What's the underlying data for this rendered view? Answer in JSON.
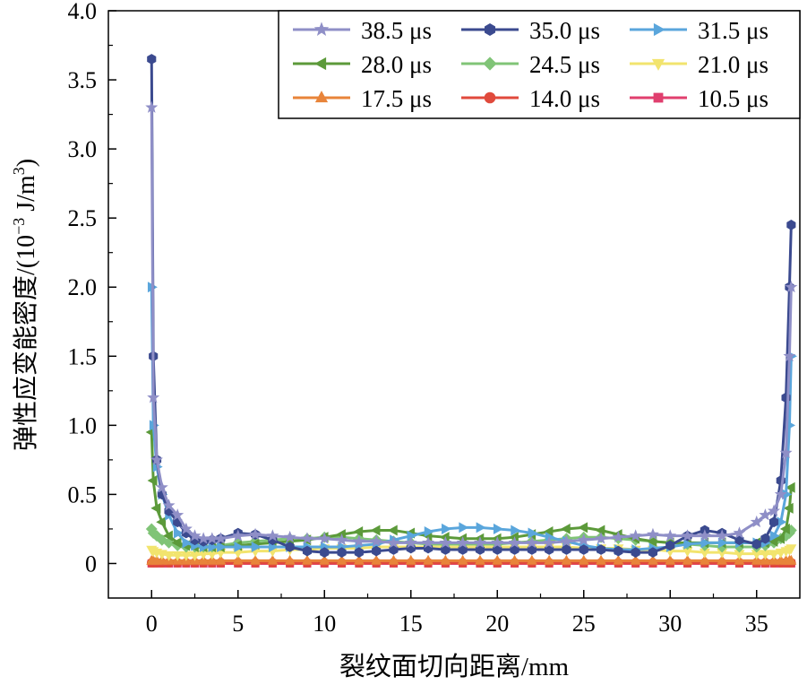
{
  "chart_data": {
    "type": "line",
    "title": "",
    "xlabel": "裂纹面切向距离/mm",
    "ylabel_main": "弹性应变能密度/(10",
    "ylabel_exp": "−3",
    "ylabel_unit": " J/m",
    "ylabel_unit_exp": "3",
    "ylabel_close": ")",
    "xlim": [
      -2.5,
      37.5
    ],
    "ylim": [
      -0.25,
      4.0
    ],
    "xticks": [
      0,
      5,
      10,
      15,
      20,
      25,
      30,
      35
    ],
    "xtick_labels": [
      "0",
      "5",
      "10",
      "15",
      "20",
      "25",
      "30",
      "35"
    ],
    "yticks": [
      0,
      0.5,
      1.0,
      1.5,
      2.0,
      2.5,
      3.0,
      3.5,
      4.0
    ],
    "ytick_labels": [
      "0",
      "0.5",
      "1.0",
      "1.5",
      "2.0",
      "2.5",
      "3.0",
      "3.5",
      "4.0"
    ],
    "legend_position": "top-right",
    "x": [
      0.0,
      0.1,
      0.3,
      0.6,
      1.0,
      1.5,
      2.0,
      2.5,
      3.0,
      3.5,
      4.0,
      5.0,
      6.0,
      7.0,
      8.0,
      9.0,
      10.0,
      11.0,
      12.0,
      13.0,
      14.0,
      15.0,
      16.0,
      17.0,
      18.0,
      19.0,
      20.0,
      21.0,
      22.0,
      23.0,
      24.0,
      25.0,
      26.0,
      27.0,
      28.0,
      29.0,
      30.0,
      31.0,
      32.0,
      33.0,
      34.0,
      35.0,
      35.5,
      36.0,
      36.4,
      36.7,
      36.9,
      37.0
    ],
    "series": [
      {
        "name": "38.5 μs",
        "color": "#8f8fc7",
        "marker": "star",
        "values": [
          3.3,
          1.2,
          0.75,
          0.55,
          0.42,
          0.35,
          0.25,
          0.2,
          0.18,
          0.18,
          0.18,
          0.2,
          0.21,
          0.2,
          0.19,
          0.18,
          0.18,
          0.17,
          0.16,
          0.16,
          0.15,
          0.15,
          0.15,
          0.15,
          0.15,
          0.15,
          0.15,
          0.15,
          0.15,
          0.15,
          0.16,
          0.17,
          0.18,
          0.19,
          0.2,
          0.21,
          0.2,
          0.2,
          0.2,
          0.2,
          0.22,
          0.3,
          0.35,
          0.38,
          0.5,
          0.8,
          1.5,
          2.0
        ]
      },
      {
        "name": "35.0 μs",
        "color": "#3b4a8f",
        "marker": "hexagon",
        "values": [
          3.65,
          1.5,
          0.75,
          0.5,
          0.38,
          0.3,
          0.22,
          0.17,
          0.16,
          0.17,
          0.18,
          0.22,
          0.21,
          0.17,
          0.12,
          0.09,
          0.08,
          0.08,
          0.08,
          0.09,
          0.1,
          0.11,
          0.11,
          0.1,
          0.1,
          0.1,
          0.1,
          0.1,
          0.1,
          0.1,
          0.1,
          0.1,
          0.1,
          0.09,
          0.08,
          0.08,
          0.13,
          0.2,
          0.24,
          0.22,
          0.17,
          0.14,
          0.18,
          0.3,
          0.6,
          1.2,
          2.0,
          2.45
        ]
      },
      {
        "name": "31.5 μs",
        "color": "#5aa6dc",
        "marker": "triangle-right",
        "values": [
          2.0,
          1.0,
          0.7,
          0.5,
          0.35,
          0.22,
          0.15,
          0.13,
          0.12,
          0.12,
          0.12,
          0.12,
          0.12,
          0.12,
          0.12,
          0.12,
          0.12,
          0.12,
          0.13,
          0.14,
          0.17,
          0.2,
          0.23,
          0.25,
          0.26,
          0.26,
          0.25,
          0.24,
          0.22,
          0.19,
          0.16,
          0.13,
          0.11,
          0.1,
          0.1,
          0.11,
          0.12,
          0.14,
          0.15,
          0.15,
          0.15,
          0.15,
          0.15,
          0.2,
          0.3,
          0.5,
          1.0,
          1.5
        ]
      },
      {
        "name": "28.0 μs",
        "color": "#5c9a3a",
        "marker": "triangle-left",
        "values": [
          0.95,
          0.6,
          0.4,
          0.3,
          0.2,
          0.15,
          0.13,
          0.12,
          0.12,
          0.12,
          0.12,
          0.13,
          0.14,
          0.15,
          0.16,
          0.17,
          0.19,
          0.21,
          0.23,
          0.24,
          0.24,
          0.22,
          0.2,
          0.19,
          0.18,
          0.18,
          0.18,
          0.19,
          0.21,
          0.23,
          0.25,
          0.26,
          0.24,
          0.21,
          0.18,
          0.16,
          0.15,
          0.15,
          0.15,
          0.15,
          0.15,
          0.15,
          0.15,
          0.16,
          0.18,
          0.25,
          0.4,
          0.55
        ]
      },
      {
        "name": "24.5 μs",
        "color": "#80c477",
        "marker": "diamond",
        "values": [
          0.25,
          0.22,
          0.2,
          0.17,
          0.15,
          0.13,
          0.12,
          0.12,
          0.12,
          0.12,
          0.13,
          0.15,
          0.16,
          0.17,
          0.18,
          0.18,
          0.19,
          0.19,
          0.18,
          0.17,
          0.16,
          0.15,
          0.14,
          0.14,
          0.14,
          0.14,
          0.14,
          0.15,
          0.16,
          0.17,
          0.18,
          0.19,
          0.19,
          0.18,
          0.17,
          0.16,
          0.15,
          0.14,
          0.13,
          0.12,
          0.12,
          0.12,
          0.13,
          0.15,
          0.18,
          0.2,
          0.22,
          0.24
        ]
      },
      {
        "name": "21.0 μs",
        "color": "#f2e46e",
        "marker": "triangle-down",
        "values": [
          0.1,
          0.09,
          0.08,
          0.07,
          0.06,
          0.06,
          0.06,
          0.06,
          0.07,
          0.07,
          0.08,
          0.08,
          0.09,
          0.09,
          0.1,
          0.1,
          0.11,
          0.11,
          0.11,
          0.12,
          0.12,
          0.12,
          0.12,
          0.12,
          0.12,
          0.12,
          0.12,
          0.12,
          0.12,
          0.12,
          0.12,
          0.11,
          0.11,
          0.11,
          0.1,
          0.1,
          0.09,
          0.09,
          0.08,
          0.08,
          0.07,
          0.07,
          0.07,
          0.07,
          0.08,
          0.09,
          0.1,
          0.11
        ]
      },
      {
        "name": "17.5 μs",
        "color": "#e8843a",
        "marker": "triangle-up",
        "values": [
          0.02,
          0.02,
          0.02,
          0.02,
          0.02,
          0.02,
          0.02,
          0.02,
          0.02,
          0.02,
          0.02,
          0.02,
          0.02,
          0.02,
          0.02,
          0.02,
          0.02,
          0.02,
          0.02,
          0.02,
          0.02,
          0.02,
          0.02,
          0.02,
          0.02,
          0.02,
          0.02,
          0.02,
          0.02,
          0.02,
          0.02,
          0.02,
          0.02,
          0.02,
          0.02,
          0.02,
          0.02,
          0.02,
          0.02,
          0.02,
          0.02,
          0.02,
          0.02,
          0.02,
          0.02,
          0.02,
          0.02,
          0.02
        ]
      },
      {
        "name": "14.0 μs",
        "color": "#e04a3c",
        "marker": "circle",
        "values": [
          0.005,
          0.005,
          0.005,
          0.005,
          0.005,
          0.005,
          0.005,
          0.005,
          0.005,
          0.005,
          0.005,
          0.005,
          0.005,
          0.005,
          0.005,
          0.005,
          0.005,
          0.005,
          0.005,
          0.005,
          0.005,
          0.005,
          0.005,
          0.005,
          0.005,
          0.005,
          0.005,
          0.005,
          0.005,
          0.005,
          0.005,
          0.005,
          0.005,
          0.005,
          0.005,
          0.005,
          0.005,
          0.005,
          0.005,
          0.005,
          0.005,
          0.005,
          0.005,
          0.005,
          0.005,
          0.005,
          0.005,
          0.005
        ]
      },
      {
        "name": "10.5 μs",
        "color": "#e03f6e",
        "marker": "square",
        "values": [
          0.0,
          0.0,
          0.0,
          0.0,
          0.0,
          0.0,
          0.0,
          0.0,
          0.0,
          0.0,
          0.0,
          0.0,
          0.0,
          0.0,
          0.0,
          0.0,
          0.0,
          0.0,
          0.0,
          0.0,
          0.0,
          0.0,
          0.0,
          0.0,
          0.0,
          0.0,
          0.0,
          0.0,
          0.0,
          0.0,
          0.0,
          0.0,
          0.0,
          0.0,
          0.0,
          0.0,
          0.0,
          0.0,
          0.0,
          0.0,
          0.0,
          0.0,
          0.0,
          0.0,
          0.0,
          0.0,
          0.0,
          0.0
        ]
      }
    ]
  }
}
